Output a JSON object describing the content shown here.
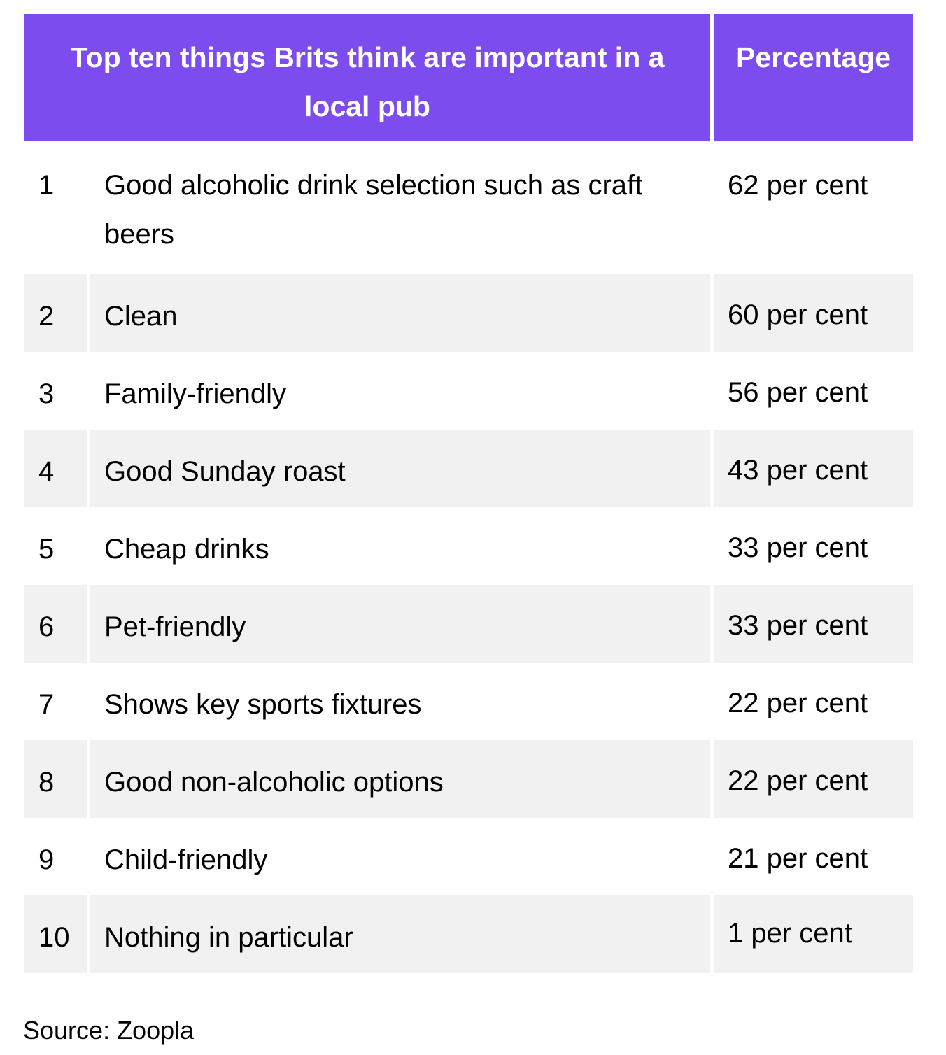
{
  "header": {
    "title": "Top ten things Brits think are important in a local pub",
    "percentage": "Percentage"
  },
  "rows": [
    {
      "rank": "1",
      "item": "Good alcoholic drink selection such as craft beers",
      "percentage": "62 per cent"
    },
    {
      "rank": "2",
      "item": "Clean",
      "percentage": "60 per cent"
    },
    {
      "rank": "3",
      "item": "Family-friendly",
      "percentage": "56 per cent"
    },
    {
      "rank": "4",
      "item": "Good Sunday roast",
      "percentage": "43 per cent"
    },
    {
      "rank": "5",
      "item": "Cheap drinks",
      "percentage": "33 per cent"
    },
    {
      "rank": "6",
      "item": "Pet-friendly",
      "percentage": "33 per cent"
    },
    {
      "rank": "7",
      "item": "Shows key sports fixtures",
      "percentage": "22 per cent"
    },
    {
      "rank": "8",
      "item": "Good non-alcoholic options",
      "percentage": "22 per cent"
    },
    {
      "rank": "9",
      "item": "Child-friendly",
      "percentage": "21 per cent"
    },
    {
      "rank": "10",
      "item": "Nothing in particular",
      "percentage": "1 per cent"
    }
  ],
  "source": "Source: Zoopla",
  "colors": {
    "header_background": "#7c4cef",
    "header_text": "#ffffff",
    "row_shade": "#f1f1f1"
  }
}
